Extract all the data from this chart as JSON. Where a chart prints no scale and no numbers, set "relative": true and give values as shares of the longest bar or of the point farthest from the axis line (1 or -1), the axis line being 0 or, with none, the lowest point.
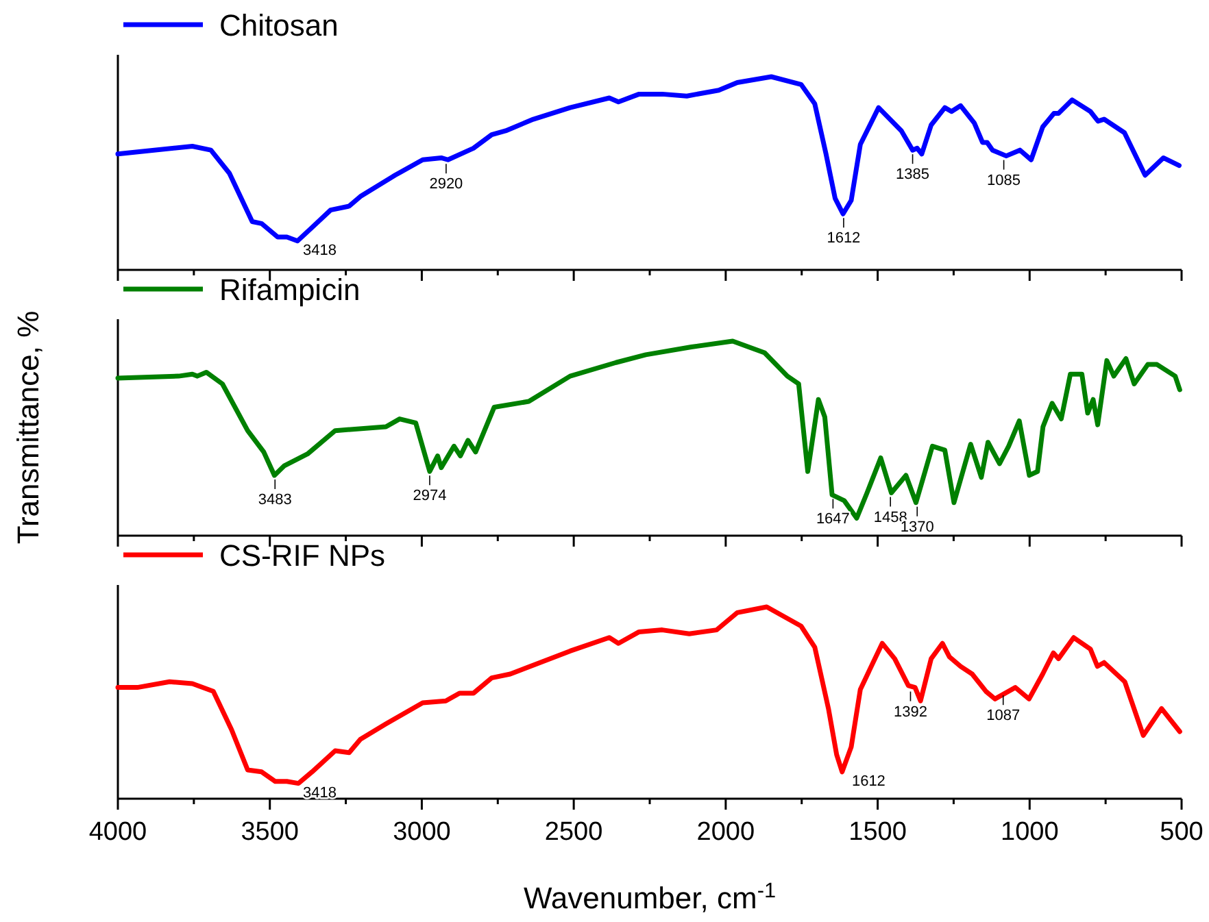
{
  "chart_data": [
    {
      "type": "line",
      "relative": true,
      "legend": "top left",
      "tick_labels": false,
      "xlim": [
        4000,
        500
      ],
      "xticks": [
        4000,
        {
          "value": 3750,
          "label": null
        },
        3500,
        {
          "value": 3250,
          "label": null
        },
        3000,
        {
          "value": 2750,
          "label": null
        },
        2500,
        {
          "value": 2250,
          "label": null
        },
        2000,
        {
          "value": 1750,
          "label": null
        },
        1500,
        {
          "value": 1250,
          "label": null
        },
        1000,
        {
          "value": 750,
          "label": null
        },
        500
      ],
      "x": [
        4000,
        3755,
        3694,
        3633,
        3558,
        3527,
        3474,
        3444,
        3409,
        3361,
        3300,
        3239,
        3202,
        3088,
        2997,
        2936,
        2914,
        2830,
        2770,
        2724,
        2633,
        2512,
        2383,
        2353,
        2285,
        2209,
        2128,
        2023,
        1962,
        1850,
        1752,
        1707,
        1670,
        1640,
        1614,
        1587,
        1557,
        1497,
        1422,
        1385,
        1370,
        1355,
        1324,
        1279,
        1257,
        1227,
        1182,
        1155,
        1140,
        1122,
        1077,
        1032,
        995,
        957,
        920,
        905,
        860,
        800,
        775,
        755,
        688,
        620,
        560,
        508
      ],
      "series": [
        {
          "name": "Chitosan",
          "color": "#0000ff",
          "values": [
            0.6,
            0.64,
            0.62,
            0.5,
            0.25,
            0.24,
            0.17,
            0.17,
            0.15,
            0.22,
            0.31,
            0.33,
            0.38,
            0.49,
            0.57,
            0.58,
            0.57,
            0.63,
            0.7,
            0.72,
            0.78,
            0.84,
            0.89,
            0.87,
            0.91,
            0.91,
            0.9,
            0.93,
            0.97,
            1.0,
            0.96,
            0.86,
            0.6,
            0.37,
            0.29,
            0.36,
            0.65,
            0.84,
            0.72,
            0.62,
            0.63,
            0.6,
            0.75,
            0.84,
            0.82,
            0.85,
            0.76,
            0.66,
            0.66,
            0.62,
            0.59,
            0.62,
            0.57,
            0.74,
            0.81,
            0.81,
            0.88,
            0.82,
            0.77,
            0.78,
            0.71,
            0.49,
            0.58,
            0.54
          ]
        }
      ],
      "annotations": [
        {
          "text": "3418",
          "x": 3418,
          "y": 0.15
        },
        {
          "text": "2920",
          "x": 2920,
          "y": 0.57
        },
        {
          "text": "1612",
          "x": 1612,
          "y": 0.29
        },
        {
          "text": "1385",
          "x": 1385,
          "y": 0.62
        },
        {
          "text": "1085",
          "x": 1085,
          "y": 0.59
        }
      ]
    },
    {
      "type": "line",
      "relative": true,
      "legend": "top left",
      "tick_labels": false,
      "xlim": [
        4000,
        500
      ],
      "ylabel": "Transmittance, %",
      "xticks": [
        4000,
        {
          "value": 3750,
          "label": null
        },
        3500,
        {
          "value": 3250,
          "label": null
        },
        3000,
        {
          "value": 2750,
          "label": null
        },
        2500,
        {
          "value": 2250,
          "label": null
        },
        2000,
        {
          "value": 1750,
          "label": null
        },
        1500,
        {
          "value": 1250,
          "label": null
        },
        1000,
        {
          "value": 750,
          "label": null
        },
        500
      ],
      "x": [
        4000,
        3800,
        3755,
        3739,
        3709,
        3656,
        3573,
        3520,
        3485,
        3452,
        3376,
        3285,
        3118,
        3073,
        3020,
        2974,
        2948,
        2936,
        2894,
        2873,
        2848,
        2823,
        2762,
        2648,
        2512,
        2361,
        2263,
        2113,
        1977,
        1872,
        1797,
        1760,
        1730,
        1695,
        1674,
        1650,
        1610,
        1569,
        1535,
        1490,
        1455,
        1407,
        1374,
        1344,
        1320,
        1279,
        1249,
        1194,
        1159,
        1137,
        1099,
        1069,
        1034,
        1001,
        974,
        956,
        926,
        896,
        866,
        828,
        809,
        791,
        776,
        746,
        723,
        683,
        656,
        611,
        581,
        521,
        506
      ],
      "series": [
        {
          "name": "Rifampicin",
          "color": "#008000",
          "values": [
            0.81,
            0.82,
            0.83,
            0.82,
            0.84,
            0.78,
            0.54,
            0.43,
            0.31,
            0.36,
            0.42,
            0.54,
            0.56,
            0.6,
            0.58,
            0.33,
            0.41,
            0.35,
            0.46,
            0.41,
            0.49,
            0.43,
            0.66,
            0.69,
            0.82,
            0.89,
            0.93,
            0.97,
            1.0,
            0.94,
            0.82,
            0.78,
            0.33,
            0.7,
            0.61,
            0.21,
            0.18,
            0.09,
            0.22,
            0.4,
            0.22,
            0.31,
            0.17,
            0.33,
            0.46,
            0.44,
            0.17,
            0.47,
            0.3,
            0.48,
            0.37,
            0.46,
            0.59,
            0.31,
            0.33,
            0.56,
            0.68,
            0.6,
            0.83,
            0.83,
            0.63,
            0.7,
            0.57,
            0.9,
            0.82,
            0.91,
            0.78,
            0.88,
            0.88,
            0.82,
            0.75
          ]
        }
      ],
      "annotations": [
        {
          "text": "3483",
          "x": 3483,
          "y": 0.31
        },
        {
          "text": "2974",
          "x": 2974,
          "y": 0.33
        },
        {
          "text": "1647",
          "x": 1647,
          "y": 0.21
        },
        {
          "text": "1458",
          "x": 1458,
          "y": 0.22
        },
        {
          "text": "1370",
          "x": 1370,
          "y": 0.17
        }
      ]
    },
    {
      "type": "line",
      "relative": true,
      "legend": "top left",
      "tick_labels": "x",
      "xlim": [
        4000,
        500
      ],
      "xlabel": "Wavenumber, cm$^{-1}$",
      "xticks": [
        4000,
        {
          "value": 3750,
          "label": null
        },
        3500,
        {
          "value": 3250,
          "label": null
        },
        3000,
        {
          "value": 2750,
          "label": null
        },
        2500,
        {
          "value": 2250,
          "label": null
        },
        2000,
        {
          "value": 1750,
          "label": null
        },
        1500,
        {
          "value": 1250,
          "label": null
        },
        1000,
        {
          "value": 750,
          "label": null
        },
        500
      ],
      "x": [
        4000,
        3936,
        3830,
        3755,
        3686,
        3626,
        3573,
        3527,
        3482,
        3444,
        3406,
        3361,
        3285,
        3239,
        3202,
        3118,
        2997,
        2921,
        2876,
        2830,
        2770,
        2709,
        2512,
        2383,
        2353,
        2285,
        2209,
        2120,
        2030,
        1962,
        1865,
        1752,
        1707,
        1662,
        1635,
        1617,
        1587,
        1557,
        1485,
        1444,
        1399,
        1377,
        1359,
        1324,
        1287,
        1264,
        1227,
        1189,
        1144,
        1114,
        1047,
        1002,
        957,
        922,
        905,
        855,
        800,
        777,
        755,
        687,
        626,
        566,
        506
      ],
      "series": [
        {
          "name": "CS-RIF NPs",
          "color": "#ff0000",
          "values": [
            0.58,
            0.58,
            0.61,
            0.6,
            0.56,
            0.36,
            0.15,
            0.14,
            0.09,
            0.09,
            0.08,
            0.14,
            0.25,
            0.24,
            0.31,
            0.39,
            0.5,
            0.51,
            0.55,
            0.55,
            0.63,
            0.65,
            0.77,
            0.84,
            0.81,
            0.87,
            0.88,
            0.86,
            0.88,
            0.97,
            1.0,
            0.9,
            0.79,
            0.47,
            0.23,
            0.14,
            0.27,
            0.57,
            0.81,
            0.73,
            0.59,
            0.58,
            0.51,
            0.73,
            0.81,
            0.74,
            0.69,
            0.65,
            0.56,
            0.52,
            0.58,
            0.52,
            0.65,
            0.76,
            0.73,
            0.84,
            0.78,
            0.69,
            0.71,
            0.61,
            0.33,
            0.47,
            0.35
          ]
        }
      ],
      "annotations": [
        {
          "text": "3418",
          "x": 3418,
          "y": 0.08
        },
        {
          "text": "1612",
          "x": 1612,
          "y": 0.14
        },
        {
          "text": "1392",
          "x": 1392,
          "y": 0.58
        },
        {
          "text": "1087",
          "x": 1087,
          "y": 0.56
        }
      ]
    }
  ]
}
